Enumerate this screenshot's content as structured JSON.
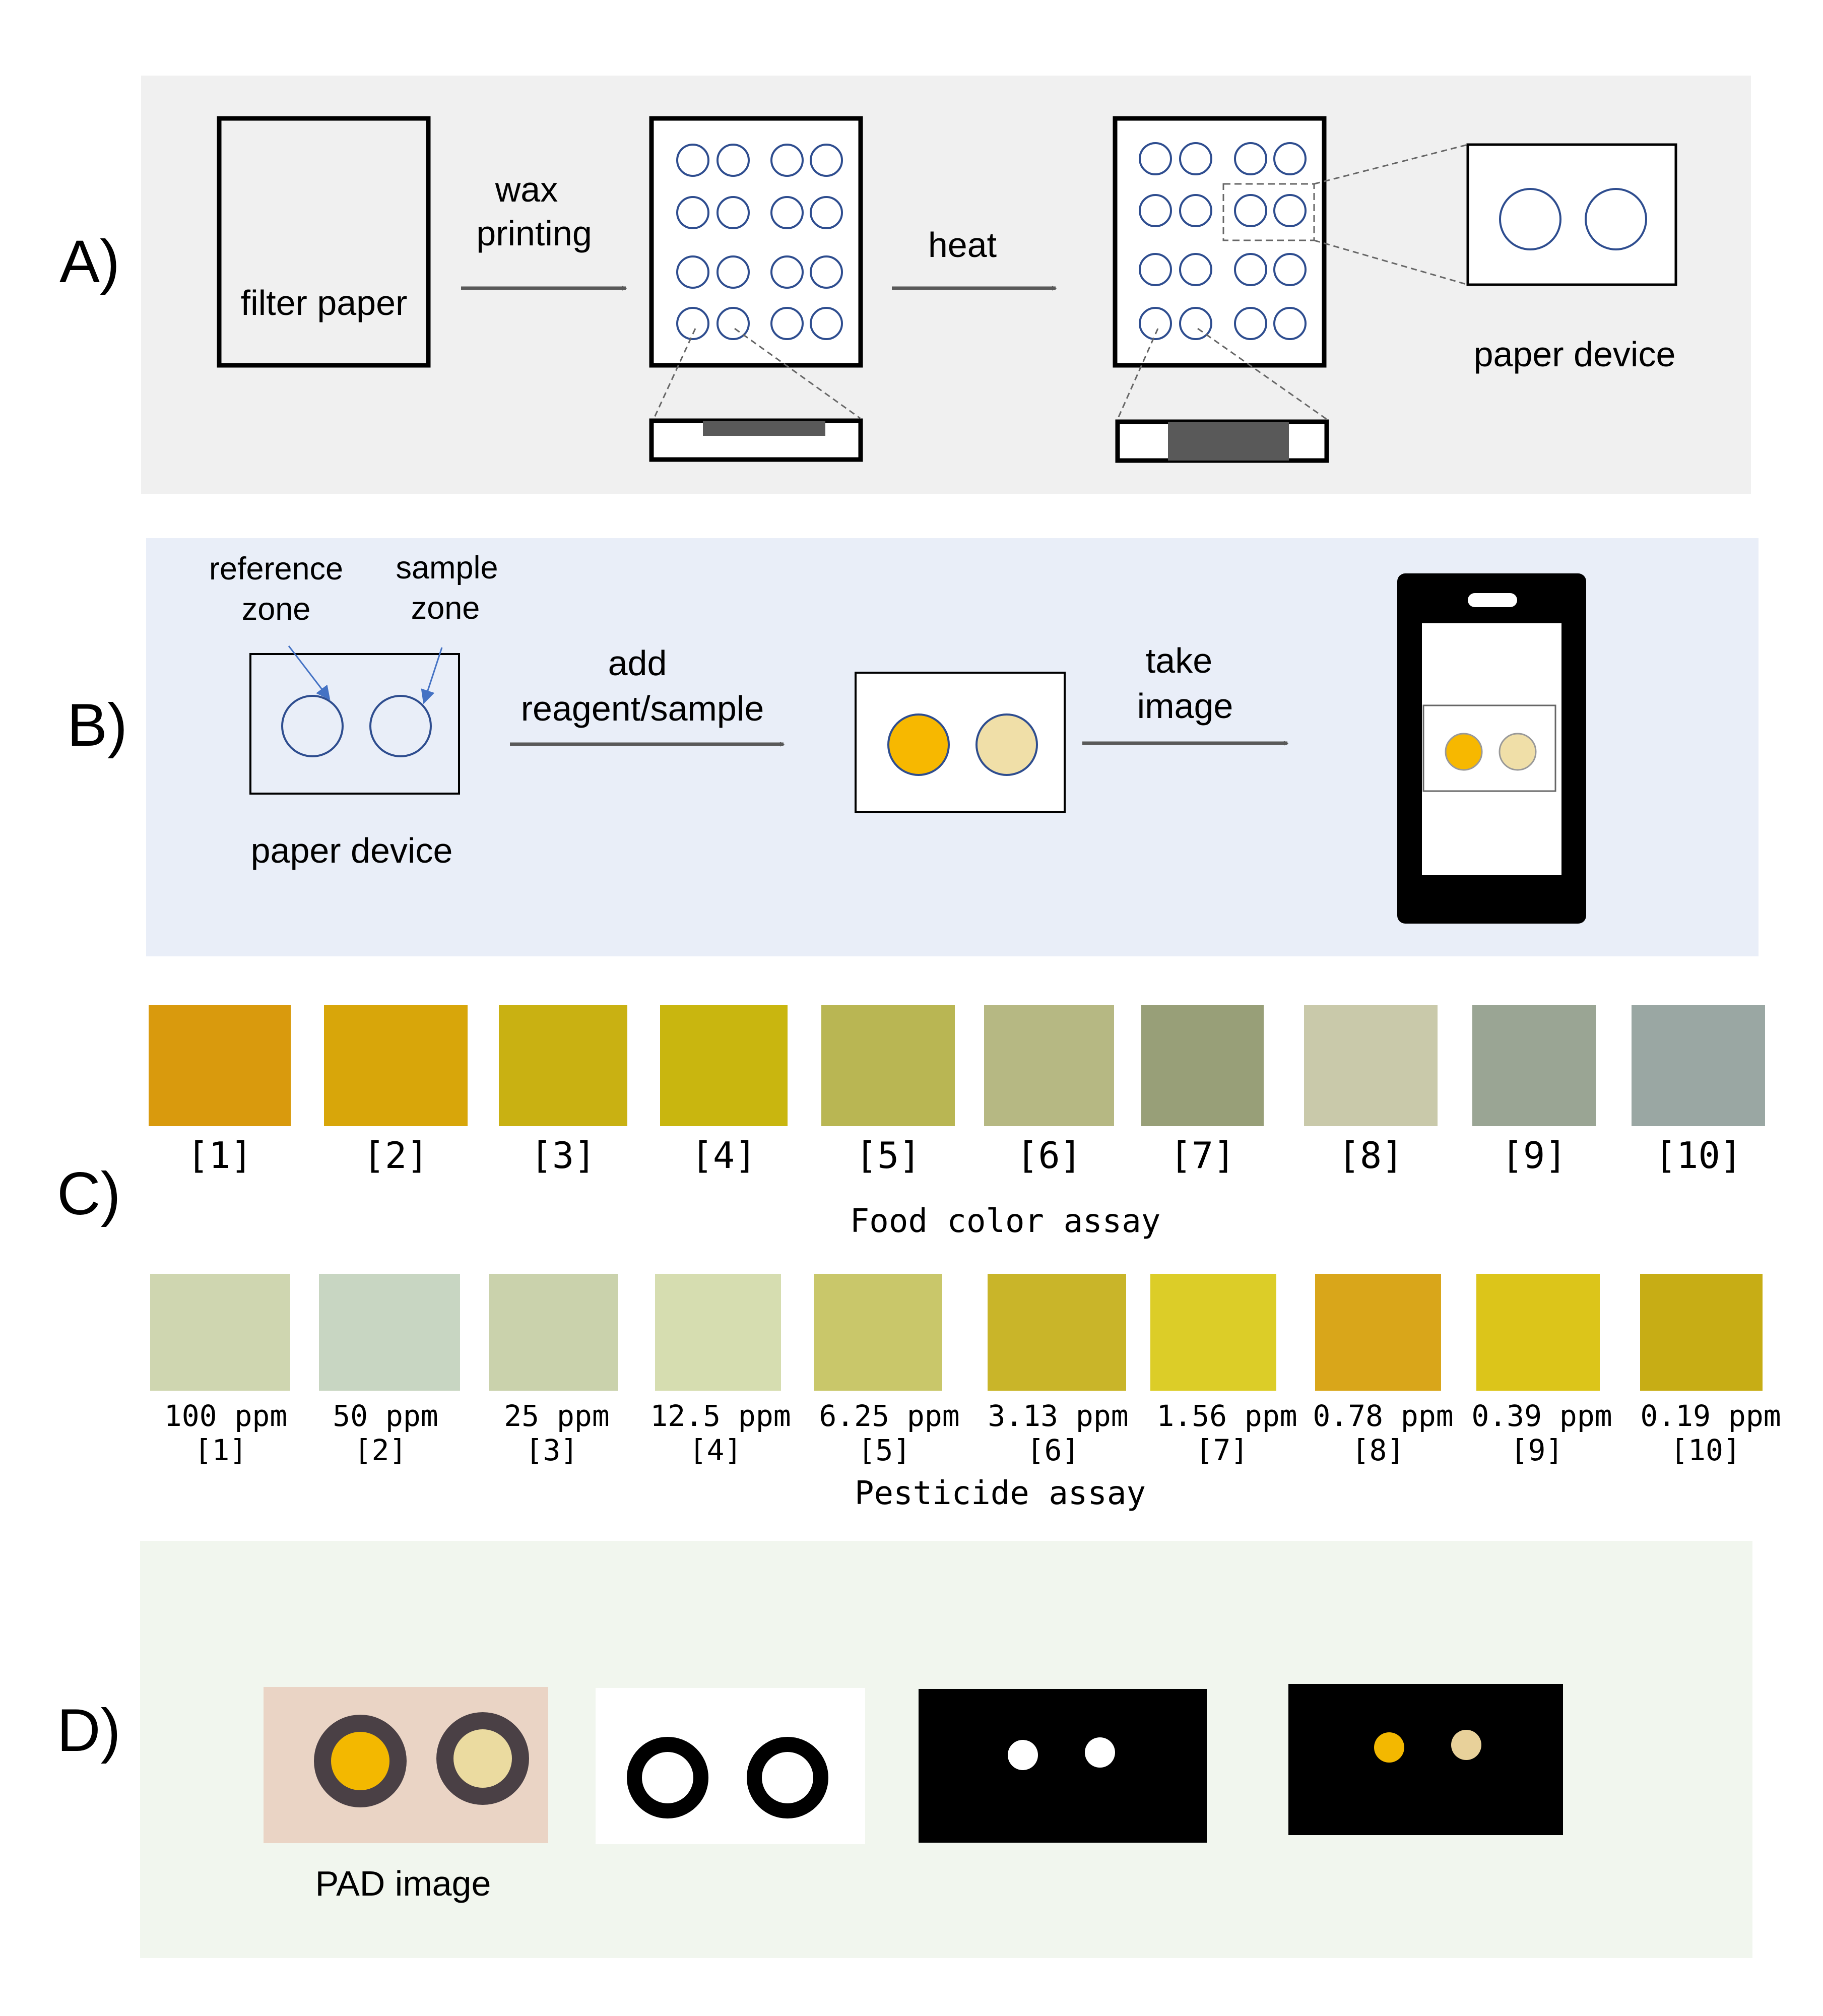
{
  "panel_a": {
    "label": "A)",
    "filter_paper": "filter paper",
    "step1_line1": "wax",
    "step1_line2": "printing",
    "step2": "heat",
    "paper_device": "paper device"
  },
  "panel_b": {
    "label": "B)",
    "reference_line1": "reference",
    "reference_line2": "zone",
    "sample_line1": "sample",
    "sample_line2": "zone",
    "paper_device": "paper device",
    "step1_line1": "add",
    "step1_line2": "reagent/sample",
    "step2_line1": "take",
    "step2_line2": "image"
  },
  "panel_c": {
    "label": "C)",
    "food_title": "Food color assay",
    "food_labels": [
      "[1]",
      "[2]",
      "[3]",
      "[4]",
      "[5]",
      "[6]",
      "[7]",
      "[8]",
      "[9]",
      "[10]"
    ],
    "food_colors": [
      "#d99a0d",
      "#d8a60a",
      "#c9b112",
      "#c9b60f",
      "#b9b653",
      "#b6b883",
      "#989f78",
      "#c9c9aa",
      "#9aa594",
      "#9aa7a3"
    ],
    "pest_title": "Pesticide assay",
    "pest_conc": [
      "100 ppm",
      "50 ppm",
      "25 ppm",
      "12.5 ppm",
      "6.25 ppm",
      "3.13 ppm",
      "1.56 ppm",
      "0.78 ppm",
      "0.39 ppm",
      "0.19 ppm"
    ],
    "pest_idx": [
      "[1]",
      "[2]",
      "[3]",
      "[4]",
      "[5]",
      "[6]",
      "[7]",
      "[8]",
      "[9]",
      "[10]"
    ],
    "pest_colors": [
      "#cfd6b0",
      "#c8d6c2",
      "#cad2ac",
      "#d6ddb0",
      "#c9c76a",
      "#c9b529",
      "#dccd28",
      "#d9a61a",
      "#dcc51a",
      "#c7ad15"
    ]
  },
  "panel_d": {
    "label": "D)",
    "pad_caption": "PAD image"
  },
  "colors": {
    "panel_a_bg": "#f0f0f0",
    "panel_b_bg": "#e9eef8",
    "panel_d_bg": "#f1f6ee",
    "zone_outline": "#2e4d8f",
    "reference_fill": "#f7b800",
    "sample_fill": "#f0dfa8",
    "arrow": "#595959"
  }
}
